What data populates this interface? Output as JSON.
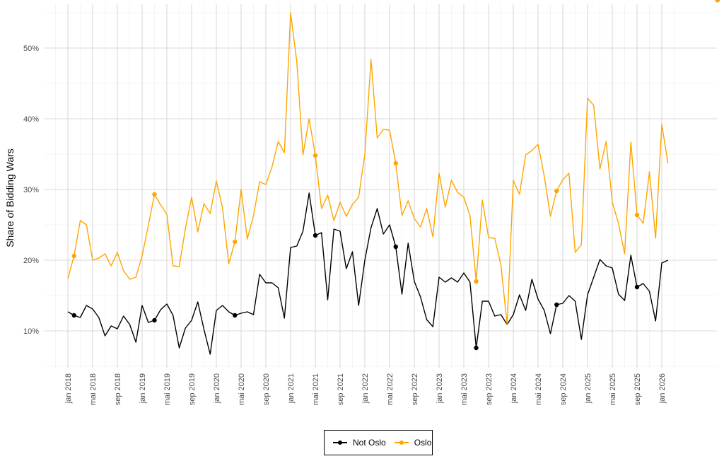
{
  "chart_data": {
    "type": "line",
    "ylabel": "Share of Bidding Wars",
    "xlabel": "",
    "ylim": [
      4.8,
      56.2
    ],
    "yticks": [
      10,
      20,
      30,
      40,
      50
    ],
    "ytick_labels": [
      "10%",
      "20%",
      "30%",
      "40%",
      "50%"
    ],
    "x_start": "2018-01",
    "xtick_labels": [
      "jan 2018",
      "mai 2018",
      "sep 2018",
      "jan 2019",
      "mai 2019",
      "sep 2019",
      "jan 2020",
      "mai 2020",
      "sep 2020",
      "jan 2021",
      "mai 2021",
      "sep 2021",
      "jan 2022",
      "mai 2022",
      "sep 2022",
      "jan 2023",
      "mai 2023",
      "sep 2023",
      "jan 2024",
      "mai 2024",
      "sep 2024",
      "jan 2025",
      "mai 2025",
      "sep 2025",
      "jan 2026"
    ],
    "grid": true,
    "legend_position": "bottom",
    "series": [
      {
        "name": "Not Oslo",
        "color": "#000000",
        "values": [
          12.7,
          12.2,
          11.9,
          13.6,
          13.1,
          11.9,
          9.3,
          10.7,
          10.3,
          12.1,
          10.9,
          8.4,
          13.6,
          11.2,
          11.5,
          13.0,
          13.8,
          12.2,
          7.6,
          10.4,
          11.5,
          14.1,
          10.2,
          6.7,
          12.9,
          13.6,
          12.7,
          12.2,
          12.5,
          12.7,
          12.3,
          18.0,
          16.8,
          16.8,
          16.1,
          11.8,
          21.8,
          22.0,
          24.1,
          29.5,
          23.5,
          23.9,
          14.4,
          24.4,
          24.1,
          18.8,
          21.2,
          13.6,
          20.0,
          24.6,
          27.3,
          23.7,
          25.0,
          21.9,
          15.2,
          22.4,
          17.0,
          14.8,
          11.6,
          10.6,
          17.6,
          16.9,
          17.5,
          16.9,
          18.2,
          16.9,
          7.6,
          14.2,
          14.2,
          12.1,
          12.3,
          10.9,
          12.3,
          15.1,
          12.9,
          17.3,
          14.5,
          12.9,
          9.6,
          13.7,
          13.9,
          15.0,
          14.2,
          8.8,
          15.1,
          17.6,
          20.1,
          19.2,
          18.9,
          15.2,
          14.3,
          20.7,
          16.2,
          16.7,
          15.6,
          11.4,
          19.6,
          20.0
        ],
        "marker_indices": [
          1,
          14,
          27,
          40,
          53,
          66,
          79,
          92,
          105
        ]
      },
      {
        "name": "Oslo",
        "color": "#FFA500",
        "values": [
          17.4,
          20.6,
          25.6,
          25.0,
          20.0,
          20.3,
          20.9,
          19.2,
          21.1,
          18.5,
          17.3,
          17.6,
          20.6,
          24.9,
          29.3,
          27.8,
          26.5,
          19.2,
          19.1,
          24.5,
          28.9,
          24.0,
          28.0,
          26.6,
          31.2,
          27.4,
          19.5,
          22.6,
          30.0,
          23.0,
          26.3,
          31.1,
          30.7,
          33.2,
          36.8,
          35.2,
          55.0,
          48.1,
          34.9,
          40.0,
          34.8,
          27.3,
          29.2,
          25.6,
          28.2,
          26.2,
          27.9,
          28.9,
          35.0,
          48.4,
          37.3,
          38.5,
          38.4,
          33.7,
          26.3,
          28.4,
          25.9,
          24.7,
          27.3,
          23.3,
          32.3,
          27.5,
          31.3,
          29.6,
          28.9,
          26.3,
          17.0,
          28.5,
          23.2,
          23.1,
          19.3,
          10.9,
          31.3,
          29.3,
          34.9,
          35.5,
          36.4,
          31.9,
          26.2,
          29.8,
          31.4,
          32.3,
          21.1,
          22.2,
          42.9,
          41.9,
          32.9,
          36.8,
          28.2,
          25.2,
          20.9,
          36.7,
          26.4,
          25.2,
          32.5,
          23.1,
          39.2,
          33.7
        ],
        "marker_indices": [
          1,
          14,
          27,
          40,
          53,
          66,
          79,
          92,
          105
        ]
      }
    ]
  }
}
